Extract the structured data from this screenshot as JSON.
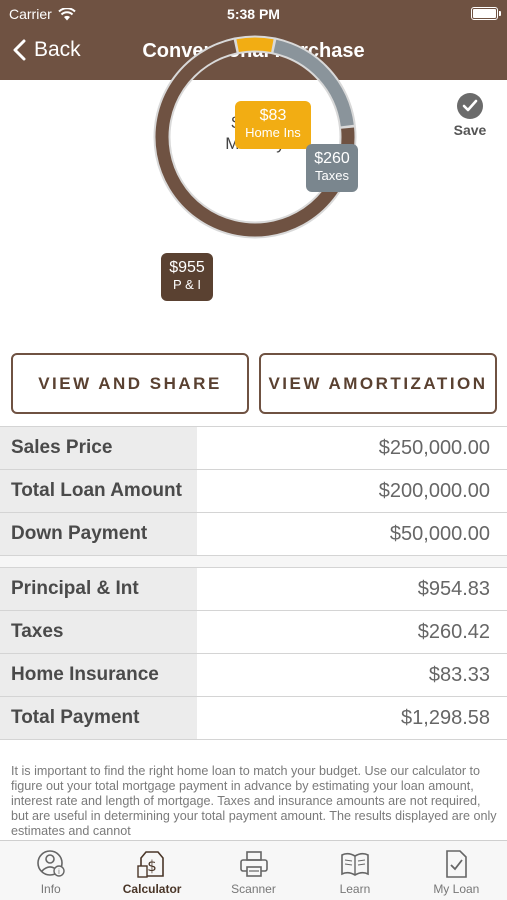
{
  "status_bar": {
    "carrier": "Carrier",
    "time": "5:38 PM"
  },
  "nav": {
    "back_label": "Back",
    "title": "Conventional Purchase"
  },
  "chart_data": {
    "type": "pie",
    "title": "",
    "center_value": "$1299",
    "center_label": "Monthly",
    "slices": [
      {
        "label": "P & I",
        "value_text": "$955",
        "value": 954.83,
        "color": "#6f5242"
      },
      {
        "label": "Taxes",
        "value_text": "$260",
        "value": 260.42,
        "color": "#8a949b"
      },
      {
        "label": "Home Ins",
        "value_text": "$83",
        "value": 83.33,
        "color": "#f2ad13"
      }
    ]
  },
  "save": {
    "label": "Save"
  },
  "buttons": {
    "view_share": "VIEW AND SHARE",
    "view_amortization": "VIEW AMORTIZATION"
  },
  "loan_rows": [
    {
      "label": "Sales Price",
      "value": "$250,000.00"
    },
    {
      "label": "Total Loan Amount",
      "value": "$200,000.00"
    },
    {
      "label": "Down Payment",
      "value": "$50,000.00"
    }
  ],
  "payment_rows": [
    {
      "label": "Principal & Int",
      "value": "$954.83"
    },
    {
      "label": "Taxes",
      "value": "$260.42"
    },
    {
      "label": "Home Insurance",
      "value": "$83.33"
    },
    {
      "label": "Total Payment",
      "value": "$1,298.58"
    }
  ],
  "disclaimer": "It is important to find the right home loan to match your budget. Use our calculator to figure out your total mortgage payment in advance by estimating your loan amount, interest rate and length of mortgage. Taxes and insurance amounts are not required, but are useful in determining your total payment amount.  The results displayed are only estimates and cannot",
  "tabs": [
    {
      "label": "Info",
      "icon": "info-person-icon"
    },
    {
      "label": "Calculator",
      "icon": "calculator-icon"
    },
    {
      "label": "Scanner",
      "icon": "printer-icon"
    },
    {
      "label": "Learn",
      "icon": "book-icon"
    },
    {
      "label": "My Loan",
      "icon": "document-check-icon"
    }
  ]
}
